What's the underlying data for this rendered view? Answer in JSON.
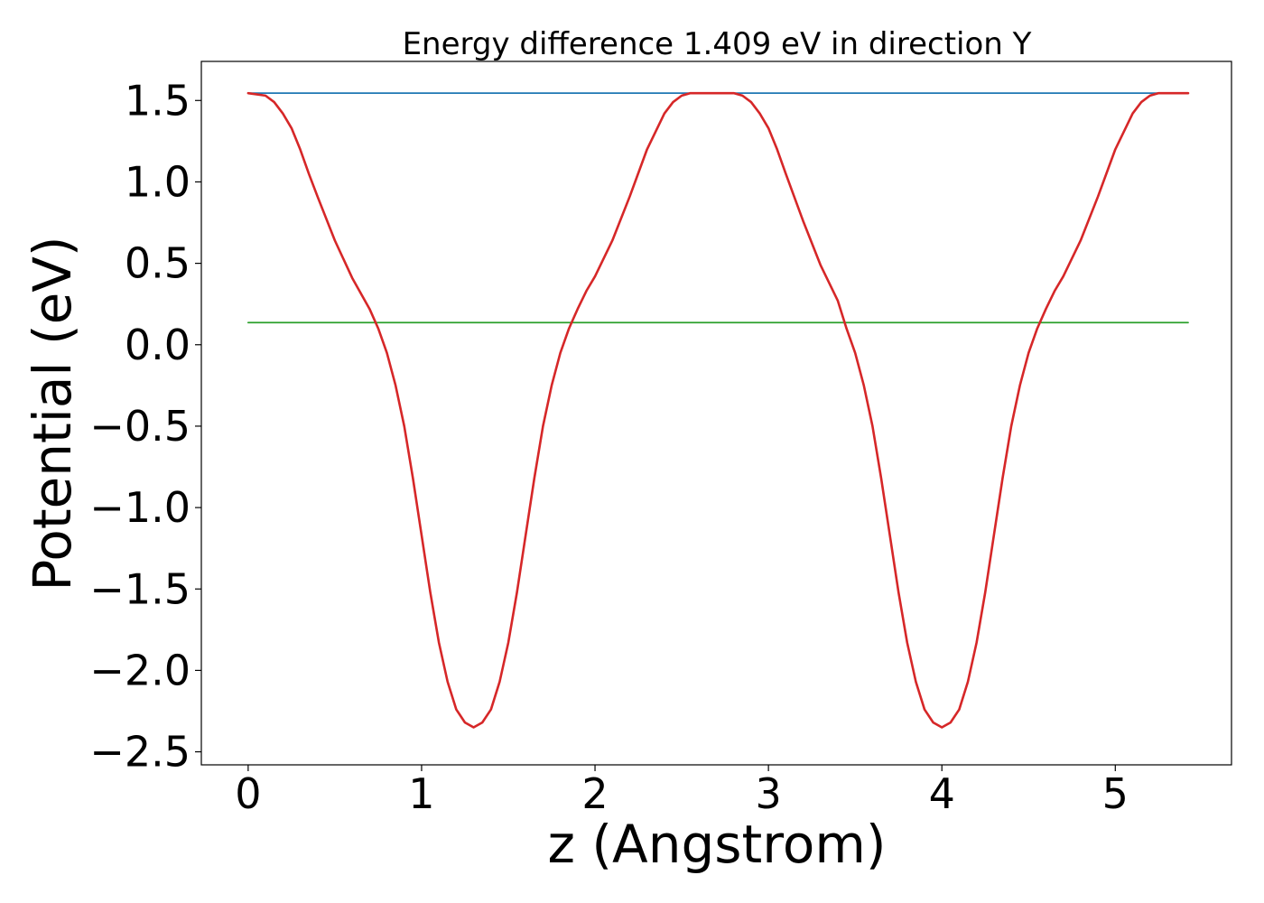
{
  "chart_data": {
    "type": "line",
    "title": "Energy difference 1.409 eV in direction Y",
    "xlabel": "z (Angstrom)",
    "ylabel": "Potential (eV)",
    "xlim": [
      -0.27,
      5.67
    ],
    "ylim": [
      -2.58,
      1.74
    ],
    "xticks": [
      0,
      1,
      2,
      3,
      4,
      5
    ],
    "xtick_labels": [
      "0",
      "1",
      "2",
      "3",
      "4",
      "5"
    ],
    "yticks": [
      1.5,
      1.0,
      0.5,
      0.0,
      -0.5,
      -1.0,
      -1.5,
      -2.0,
      -2.5
    ],
    "ytick_labels": [
      "1.5",
      "1.0",
      "0.5",
      "0.0",
      "−0.5",
      "−1.0",
      "−1.5",
      "−2.0",
      "−2.5"
    ],
    "grid": false,
    "legend": "none",
    "series": [
      {
        "color": "#d62728",
        "x": [
          0.0,
          0.1,
          0.15,
          0.2,
          0.25,
          0.3,
          0.35,
          0.4,
          0.5,
          0.6,
          0.7,
          0.75,
          0.8,
          0.85,
          0.9,
          0.95,
          1.0,
          1.05,
          1.1,
          1.15,
          1.2,
          1.25,
          1.3,
          1.35,
          1.4,
          1.45,
          1.5,
          1.55,
          1.6,
          1.65,
          1.7,
          1.75,
          1.8,
          1.85,
          1.9,
          1.95,
          2.0,
          2.1,
          2.2,
          2.3,
          2.4,
          2.45,
          2.5,
          2.55,
          2.6,
          2.65,
          2.7,
          2.75,
          2.8,
          2.85,
          2.9,
          2.95,
          3.0,
          3.05,
          3.1,
          3.2,
          3.3,
          3.4,
          3.45,
          3.5,
          3.55,
          3.6,
          3.65,
          3.7,
          3.75,
          3.8,
          3.85,
          3.9,
          3.95,
          4.0,
          4.05,
          4.1,
          4.15,
          4.2,
          4.25,
          4.3,
          4.35,
          4.4,
          4.45,
          4.5,
          4.55,
          4.6,
          4.65,
          4.7,
          4.8,
          4.9,
          5.0,
          5.1,
          5.15,
          5.2,
          5.25,
          5.3,
          5.35,
          5.42
        ],
        "y": [
          1.545,
          1.53,
          1.49,
          1.42,
          1.33,
          1.2,
          1.05,
          0.91,
          0.64,
          0.41,
          0.22,
          0.1,
          -0.05,
          -0.25,
          -0.5,
          -0.82,
          -1.17,
          -1.52,
          -1.83,
          -2.07,
          -2.24,
          -2.32,
          -2.35,
          -2.32,
          -2.24,
          -2.07,
          -1.83,
          -1.52,
          -1.17,
          -0.82,
          -0.5,
          -0.25,
          -0.05,
          0.1,
          0.22,
          0.33,
          0.42,
          0.64,
          0.91,
          1.2,
          1.42,
          1.49,
          1.53,
          1.545,
          1.545,
          1.545,
          1.545,
          1.545,
          1.545,
          1.53,
          1.49,
          1.42,
          1.33,
          1.2,
          1.05,
          0.76,
          0.49,
          0.27,
          0.1,
          -0.05,
          -0.25,
          -0.5,
          -0.82,
          -1.17,
          -1.52,
          -1.83,
          -2.07,
          -2.24,
          -2.32,
          -2.35,
          -2.32,
          -2.24,
          -2.07,
          -1.83,
          -1.52,
          -1.17,
          -0.82,
          -0.5,
          -0.25,
          -0.05,
          0.1,
          0.22,
          0.33,
          0.42,
          0.64,
          0.91,
          1.2,
          1.42,
          1.49,
          1.53,
          1.545,
          1.545,
          1.545,
          1.545
        ]
      },
      {
        "color": "#1f77b4",
        "x": [
          0.0,
          5.42
        ],
        "y": [
          1.545,
          1.545
        ]
      },
      {
        "color": "#2ca02c",
        "x": [
          0.0,
          5.42
        ],
        "y": [
          0.136,
          0.136
        ]
      }
    ]
  }
}
